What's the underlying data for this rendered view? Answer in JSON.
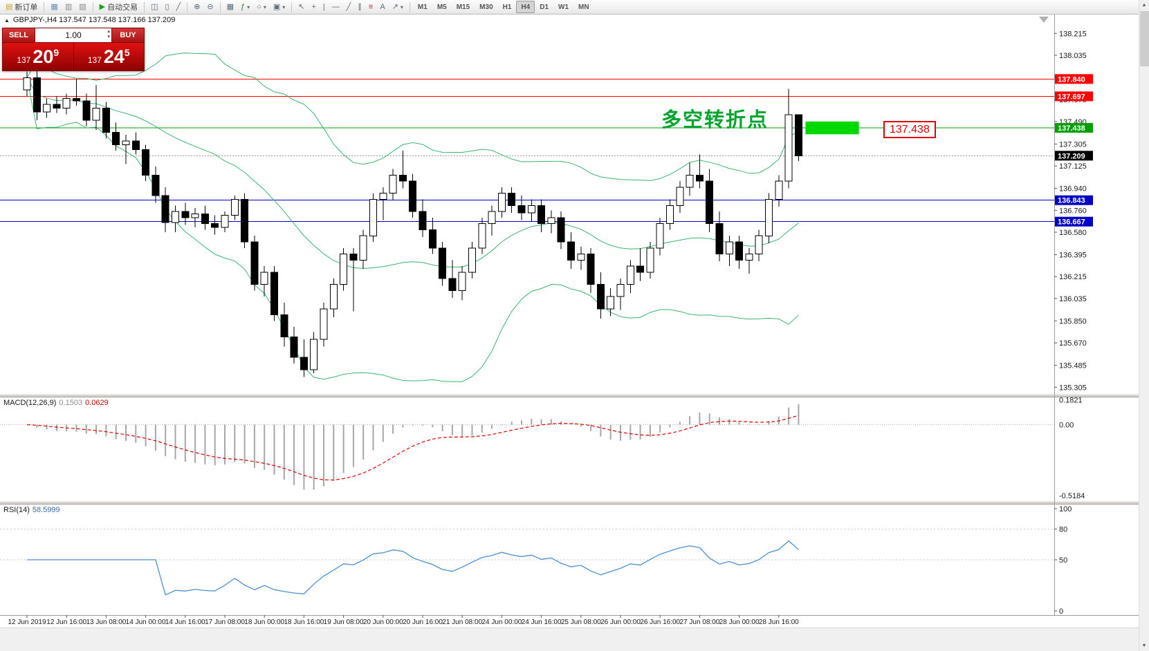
{
  "icons": {
    "dropdown": "▾",
    "scroll_up": "▲",
    "scroll_down": "▼",
    "spin_up": "▴",
    "spin_down": "▾",
    "collapse": "▲"
  },
  "toolbar": {
    "groups": [
      {
        "items": [
          {
            "name": "new-order-button",
            "glyph": "▤",
            "glyph_color": "#caa227",
            "label": "新订单"
          }
        ]
      },
      {
        "items": [
          {
            "name": "new-chart-button",
            "glyph": "▦",
            "glyph_color": "#6b8cba"
          },
          {
            "name": "profiles-button",
            "glyph": "▥",
            "glyph_color": "#8a8a8a"
          },
          {
            "name": "market-watch-button",
            "glyph": "▨",
            "glyph_color": "#8a8a8a"
          }
        ]
      },
      {
        "items": [
          {
            "name": "auto-trading-button",
            "glyph": "▶",
            "glyph_color": "#1fa01f",
            "label": "自动交易"
          }
        ]
      },
      {
        "items": [
          {
            "name": "bar-chart-mode-button",
            "glyph": "◫"
          },
          {
            "name": "candlestick-mode-button",
            "glyph": "▯"
          },
          {
            "name": "line-chart-mode-button",
            "glyph": "╱"
          }
        ]
      },
      {
        "items": [
          {
            "name": "zoom-in-button",
            "glyph": "⊕"
          },
          {
            "name": "zoom-out-button",
            "glyph": "⊖"
          }
        ]
      },
      {
        "items": [
          {
            "name": "tile-windows-button",
            "glyph": "▦"
          },
          {
            "name": "indicators-button",
            "glyph": "ƒ",
            "glyph_color": "#2e7d32",
            "dropdown": true
          },
          {
            "name": "periods-button",
            "glyph": "○",
            "dropdown": true
          },
          {
            "name": "templates-button",
            "glyph": "▣",
            "dropdown": true
          }
        ]
      },
      {
        "items": [
          {
            "name": "cursor-button",
            "glyph": "↖"
          },
          {
            "name": "crosshair-button",
            "glyph": "+"
          },
          {
            "name": "vertical-line-button",
            "glyph": "|"
          },
          {
            "name": "horizontal-line-button",
            "glyph": "—"
          },
          {
            "name": "trendline-button",
            "glyph": "╱"
          },
          {
            "name": "equidistant-channel-button",
            "glyph": "∥"
          },
          {
            "name": "fibonacci-button",
            "glyph": "≡",
            "glyph_color": "#b03030"
          },
          {
            "name": "text-label-button",
            "glyph": "A"
          },
          {
            "name": "arrows-button",
            "glyph": "↗",
            "dropdown": true
          }
        ]
      },
      {
        "items": [
          {
            "name": "timeframe-m1-button",
            "label": "M1"
          },
          {
            "name": "timeframe-m5-button",
            "label": "M5"
          },
          {
            "name": "timeframe-m15-button",
            "label": "M15"
          },
          {
            "name": "timeframe-m30-button",
            "label": "M30"
          },
          {
            "name": "timeframe-h1-button",
            "label": "H1"
          },
          {
            "name": "timeframe-h4-button",
            "label": "H4",
            "active": true
          },
          {
            "name": "timeframe-d1-button",
            "label": "D1"
          },
          {
            "name": "timeframe-w1-button",
            "label": "W1"
          },
          {
            "name": "timeframe-mn-button",
            "label": "MN"
          }
        ]
      }
    ]
  },
  "chart": {
    "header": {
      "collapse_glyph": "▲",
      "text": "GBPJPY-,H4 137.547 137.548 137.166 137.209"
    },
    "one_click": {
      "sell_label": "SELL",
      "buy_label": "BUY",
      "volume": "1.00",
      "sell_price": {
        "small": "137",
        "big": "20",
        "sup": "9"
      },
      "buy_price": {
        "small": "137",
        "big": "24",
        "sup": "5"
      }
    },
    "annotation_text": "多空转折点",
    "price_callout": "137.438",
    "macd_title": "MACD(12,26,9)",
    "macd_main_value": "0.1503",
    "macd_signal_value": "0.0629",
    "rsi_title": "RSI(14)",
    "rsi_value": "58.5999"
  },
  "chart_data": {
    "type": "candlestick",
    "symbol": "GBPJPY-",
    "timeframe": "H4",
    "ohlc": {
      "open": 137.547,
      "high": 137.548,
      "low": 137.166,
      "close": 137.209
    },
    "current_price": 137.209,
    "price_range": [
      135.25,
      138.37
    ],
    "price_axis_ticks": [
      138.215,
      138.035,
      137.855,
      137.67,
      137.49,
      137.305,
      137.125,
      136.94,
      136.76,
      136.58,
      136.395,
      136.215,
      136.035,
      135.85,
      135.67,
      135.485,
      135.305
    ],
    "hlines": [
      {
        "price": 137.84,
        "color": "#ff0000"
      },
      {
        "price": 137.697,
        "color": "#ff0000"
      },
      {
        "price": 137.438,
        "color": "#00a000"
      },
      {
        "price": 136.843,
        "color": "#0000c8"
      },
      {
        "price": 136.667,
        "color": "#0000c8"
      }
    ],
    "highlight_box": {
      "price_top": 137.49,
      "price_bottom": 137.385,
      "x_start_bar": 78.7,
      "x_end_bar": 84.1,
      "color": "#00d800"
    },
    "bollinger": {
      "period": 20,
      "deviation": 2,
      "color": "#3cb371"
    },
    "candles": [
      [
        137.75,
        137.9,
        137.7,
        137.85
      ],
      [
        137.85,
        138.0,
        137.5,
        137.57
      ],
      [
        137.57,
        137.68,
        137.52,
        137.63
      ],
      [
        137.63,
        137.7,
        137.56,
        137.6
      ],
      [
        137.6,
        137.72,
        137.55,
        137.68
      ],
      [
        137.68,
        137.84,
        137.62,
        137.66
      ],
      [
        137.66,
        137.72,
        137.45,
        137.5
      ],
      [
        137.5,
        137.79,
        137.42,
        137.6
      ],
      [
        137.6,
        137.65,
        137.35,
        137.4
      ],
      [
        137.4,
        137.48,
        137.25,
        137.3
      ],
      [
        137.3,
        137.38,
        137.14,
        137.33
      ],
      [
        137.33,
        137.4,
        137.22,
        137.26
      ],
      [
        137.26,
        137.3,
        137.0,
        137.05
      ],
      [
        137.05,
        137.12,
        136.82,
        136.88
      ],
      [
        136.88,
        136.95,
        136.58,
        136.66
      ],
      [
        136.66,
        136.8,
        136.58,
        136.75
      ],
      [
        136.75,
        136.82,
        136.64,
        136.7
      ],
      [
        136.7,
        136.78,
        136.62,
        136.73
      ],
      [
        136.73,
        136.8,
        136.6,
        136.65
      ],
      [
        136.65,
        136.72,
        136.56,
        136.62
      ],
      [
        136.62,
        136.75,
        136.58,
        136.72
      ],
      [
        136.72,
        136.88,
        136.68,
        136.85
      ],
      [
        136.85,
        136.9,
        136.45,
        136.5
      ],
      [
        136.5,
        136.55,
        136.1,
        136.15
      ],
      [
        136.15,
        136.3,
        136.05,
        136.25
      ],
      [
        136.25,
        136.3,
        135.85,
        135.9
      ],
      [
        135.9,
        136.0,
        135.64,
        135.72
      ],
      [
        135.72,
        135.8,
        135.5,
        135.55
      ],
      [
        135.55,
        135.7,
        135.39,
        135.45
      ],
      [
        135.45,
        135.76,
        135.42,
        135.7
      ],
      [
        135.7,
        136.0,
        135.64,
        135.95
      ],
      [
        135.95,
        136.2,
        135.88,
        136.15
      ],
      [
        136.15,
        136.45,
        136.1,
        136.4
      ],
      [
        136.4,
        136.45,
        135.93,
        136.35
      ],
      [
        136.35,
        136.6,
        136.28,
        136.55
      ],
      [
        136.55,
        136.9,
        136.5,
        136.85
      ],
      [
        136.85,
        136.95,
        136.68,
        136.9
      ],
      [
        136.9,
        137.1,
        136.84,
        137.05
      ],
      [
        137.05,
        137.25,
        136.94,
        137.0
      ],
      [
        137.0,
        137.06,
        136.7,
        136.75
      ],
      [
        136.75,
        136.85,
        136.54,
        136.6
      ],
      [
        136.6,
        136.7,
        136.4,
        136.45
      ],
      [
        136.45,
        136.5,
        136.14,
        136.2
      ],
      [
        136.2,
        136.35,
        136.04,
        136.1
      ],
      [
        136.1,
        136.3,
        136.02,
        136.25
      ],
      [
        136.25,
        136.5,
        136.2,
        136.45
      ],
      [
        136.45,
        136.7,
        136.4,
        136.65
      ],
      [
        136.65,
        136.8,
        136.55,
        136.75
      ],
      [
        136.75,
        136.95,
        136.7,
        136.9
      ],
      [
        136.9,
        136.95,
        136.74,
        136.8
      ],
      [
        136.8,
        136.88,
        136.68,
        136.74
      ],
      [
        136.74,
        136.85,
        136.67,
        136.8
      ],
      [
        136.8,
        136.85,
        136.58,
        136.65
      ],
      [
        136.65,
        136.76,
        136.57,
        136.7
      ],
      [
        136.7,
        136.75,
        136.44,
        136.5
      ],
      [
        136.5,
        136.58,
        136.28,
        136.35
      ],
      [
        136.35,
        136.46,
        136.27,
        136.4
      ],
      [
        136.4,
        136.45,
        136.08,
        136.15
      ],
      [
        136.15,
        136.25,
        135.87,
        135.95
      ],
      [
        135.95,
        136.12,
        135.89,
        136.05
      ],
      [
        136.05,
        136.2,
        135.94,
        136.15
      ],
      [
        136.15,
        136.35,
        136.08,
        136.3
      ],
      [
        136.3,
        136.45,
        136.18,
        136.25
      ],
      [
        136.25,
        136.5,
        136.2,
        136.45
      ],
      [
        136.45,
        136.7,
        136.39,
        136.65
      ],
      [
        136.65,
        136.85,
        136.6,
        136.8
      ],
      [
        136.8,
        137.0,
        136.74,
        136.95
      ],
      [
        136.95,
        137.15,
        136.88,
        137.05
      ],
      [
        137.05,
        137.22,
        136.94,
        137.0
      ],
      [
        137.0,
        137.1,
        136.58,
        136.65
      ],
      [
        136.65,
        136.75,
        136.34,
        136.4
      ],
      [
        136.4,
        136.55,
        136.3,
        136.5
      ],
      [
        136.5,
        136.55,
        136.28,
        136.35
      ],
      [
        136.35,
        136.45,
        136.24,
        136.4
      ],
      [
        136.4,
        136.6,
        136.34,
        136.55
      ],
      [
        136.55,
        136.9,
        136.49,
        136.85
      ],
      [
        136.85,
        137.05,
        136.79,
        137.0
      ],
      [
        137.0,
        137.76,
        136.94,
        137.547
      ],
      [
        137.547,
        137.548,
        137.166,
        137.209
      ]
    ],
    "time_labels": [
      "12 Jun 2019",
      "12 Jun 16:00",
      "13 Jun 08:00",
      "14 Jun 00:00",
      "14 Jun 16:00",
      "17 Jun 08:00",
      "18 Jun 00:00",
      "18 Jun 16:00",
      "19 Jun 08:00",
      "20 Jun 00:00",
      "20 Jun 16:00",
      "21 Jun 08:00",
      "24 Jun 00:00",
      "24 Jun 16:00",
      "25 Jun 08:00",
      "26 Jun 00:00",
      "26 Jun 16:00",
      "27 Jun 08:00",
      "28 Jun 00:00",
      "28 Jun 16:00"
    ],
    "bars_per_time_label": 4,
    "macd": {
      "params": [
        12,
        26,
        9
      ],
      "main": 0.1503,
      "signal": 0.0629,
      "axis_labels": [
        "0.1821",
        "0.00",
        "-0.5184"
      ],
      "range": [
        -0.56,
        0.2
      ],
      "histogram_color": "#a6a6a6",
      "signal_color": "#dd0000"
    },
    "rsi": {
      "period": 14,
      "value": 58.5999,
      "axis_labels": [
        100,
        80,
        50,
        0
      ],
      "levels": [
        80,
        50
      ],
      "range": [
        0,
        100
      ],
      "line_color": "#4a8fd3"
    }
  }
}
